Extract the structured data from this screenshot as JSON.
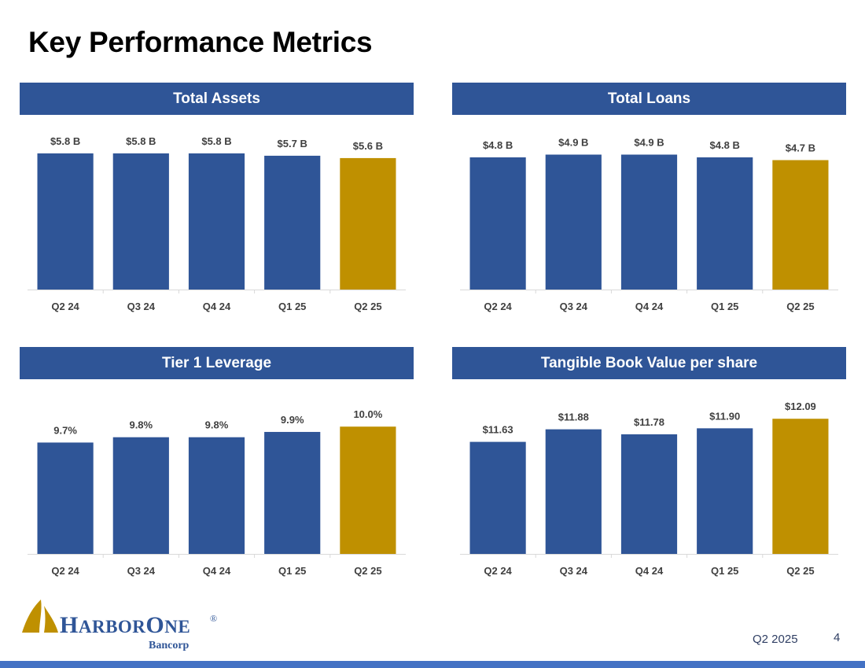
{
  "title": "Key Performance Metrics",
  "colors": {
    "bar": "#2f5597",
    "highlight": "#bf9000",
    "header": "#2f5597",
    "band": "#4472c4"
  },
  "chart_data": [
    {
      "type": "bar",
      "title": "Total Assets",
      "categories": [
        "Q2 24",
        "Q3 24",
        "Q4 24",
        "Q1 25",
        "Q2 25"
      ],
      "values": [
        5.8,
        5.8,
        5.8,
        5.7,
        5.6
      ],
      "labels": [
        "$5.8 B",
        "$5.8 B",
        "$5.8 B",
        "$5.7 B",
        "$5.6 B"
      ],
      "highlight_index": 4,
      "ylim": [
        0,
        6.1
      ]
    },
    {
      "type": "bar",
      "title": "Total Loans",
      "categories": [
        "Q2 24",
        "Q3 24",
        "Q4 24",
        "Q1 25",
        "Q2 25"
      ],
      "values": [
        4.8,
        4.9,
        4.9,
        4.8,
        4.7
      ],
      "labels": [
        "$4.8 B",
        "$4.9 B",
        "$4.9 B",
        "$4.8 B",
        "$4.7 B"
      ],
      "highlight_index": 4,
      "ylim": [
        0,
        5.2
      ]
    },
    {
      "type": "bar",
      "title": "Tier 1 Leverage",
      "categories": [
        "Q2 24",
        "Q3 24",
        "Q4 24",
        "Q1 25",
        "Q2 25"
      ],
      "values": [
        9.7,
        9.8,
        9.8,
        9.9,
        10.0
      ],
      "labels": [
        "9.7%",
        "9.8%",
        "9.8%",
        "9.9%",
        "10.0%"
      ],
      "highlight_index": 4,
      "ylim": [
        7.6,
        10.3
      ]
    },
    {
      "type": "bar",
      "title": "Tangible Book Value per share",
      "categories": [
        "Q2 24",
        "Q3 24",
        "Q4 24",
        "Q1 25",
        "Q2 25"
      ],
      "values": [
        11.63,
        11.88,
        11.78,
        11.9,
        12.09
      ],
      "labels": [
        "$11.63",
        "$11.88",
        "$11.78",
        "$11.90",
        "$12.09"
      ],
      "highlight_index": 4,
      "ylim": [
        9.4,
        12.25
      ]
    }
  ],
  "logo": {
    "name": "HARBORONE",
    "sub": "Bancorp",
    "mark": "®"
  },
  "footer": {
    "date": "Q2 2025",
    "page": "4"
  }
}
